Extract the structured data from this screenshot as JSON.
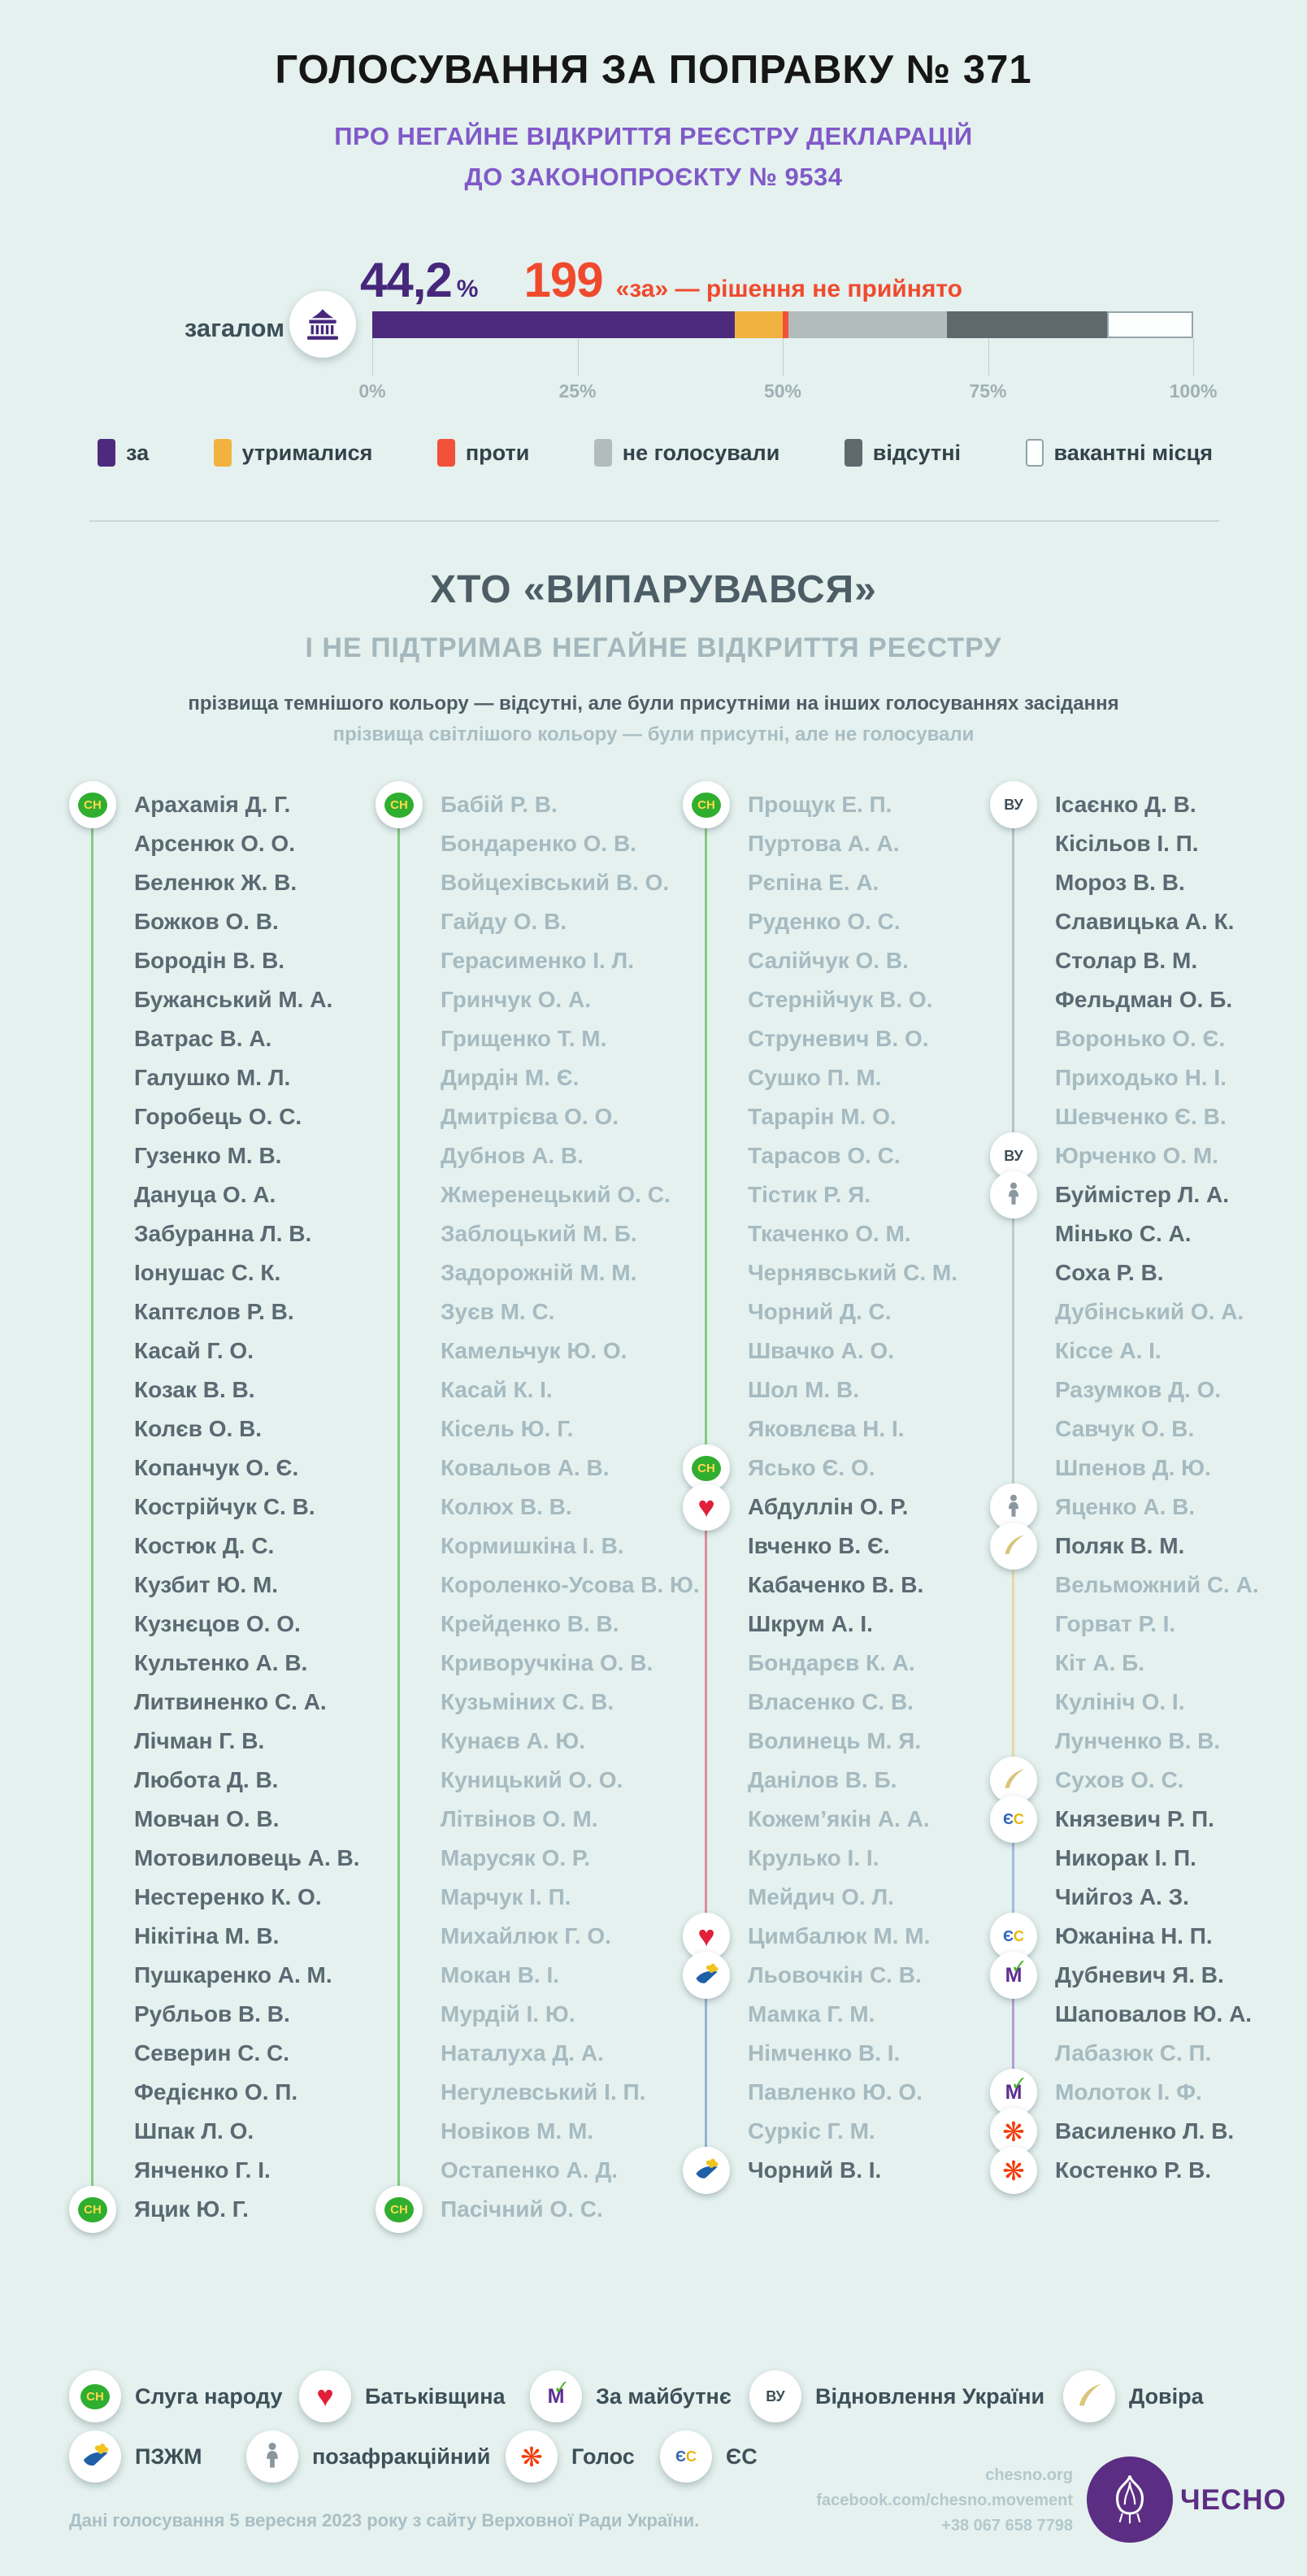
{
  "header": {
    "title": "ГОЛОСУВАННЯ ЗА ПОПРАВКУ № 371",
    "subtitle_line1": "ПРО НЕГАЙНЕ ВІДКРИТТЯ РЕЄСТРУ ДЕКЛАРАЦІЙ",
    "subtitle_line2": "ДО ЗАКОНОПРОЄКТУ № 9534"
  },
  "chart_data": {
    "type": "bar",
    "variant": "stacked-horizontal",
    "row_label": "загалом",
    "stat_percent": "44,2",
    "stat_percent_symbol": "%",
    "stat_count": "199",
    "stat_note": "«за» — рішення не прийнято",
    "segments": [
      {
        "label": "за",
        "value": 44.2,
        "color": "#4e2a7e"
      },
      {
        "label": "утрималися",
        "value": 5.8,
        "color": "#f2b240"
      },
      {
        "label": "проти",
        "value": 0.7,
        "color": "#f05138"
      },
      {
        "label": "не голосували",
        "value": 19.3,
        "color": "#b3bcbd"
      },
      {
        "label": "відсутні",
        "value": 19.5,
        "color": "#5f686c"
      },
      {
        "label": "вакантні місця",
        "value": 10.5,
        "color": "#ffffff"
      }
    ],
    "x_ticks": [
      "0%",
      "25%",
      "50%",
      "75%",
      "100%"
    ],
    "xlim": [
      0,
      100
    ],
    "grid": false,
    "legend_position": "below"
  },
  "section": {
    "title": "ХТО «ВИПАРУВАВСЯ»",
    "subtitle": "І НЕ ПІДТРИМАВ НЕГАЙНЕ ВІДКРИТТЯ РЕЄСТРУ",
    "note_dark": "прізвища темнішого кольору — відсутні, але були присутніми на інших голосуваннях засідання",
    "note_light": "прізвища світлішого кольору — були присутні, але не голосували"
  },
  "parties": {
    "sn": {
      "label": "Слуга народу",
      "abbr": "СН",
      "color": "#2fae2f",
      "line_color": "#86c986"
    },
    "bat": {
      "label": "Батьківщина",
      "color": "#e02039",
      "line_color": "#d98f9b"
    },
    "zm": {
      "label": "За майбутнє",
      "abbr": "М",
      "color": "#5e2d91",
      "line_color": "#b59fd6"
    },
    "vu": {
      "label": "Відновлення України",
      "abbr": "ВУ",
      "color": "#3d4f58",
      "line_color": "#b7c3c8"
    },
    "dov": {
      "label": "Довіра",
      "color": "#d9c57a",
      "line_color": "#e4d9ab"
    },
    "pzzm": {
      "label": "ПЗЖМ",
      "color": "#1f5fa8",
      "line_color": "#93b4d6"
    },
    "nf": {
      "label": "позафракційний",
      "color": "#8a979e",
      "line_color": "#bfc9ce"
    },
    "gol": {
      "label": "Голос",
      "color": "#f23d0c",
      "line_color": "#f3b59f"
    },
    "es": {
      "label": "ЄС",
      "abbr": "ЄС",
      "color": "#2b62b8",
      "color2": "#e8b60c",
      "line_color": "#a3bcdf"
    }
  },
  "deputies": {
    "shade_codes": {
      "d": "відсутні (темніші)",
      "l": "не голосували (світліші)"
    },
    "columns": [
      {
        "groups": [
          {
            "party": "sn",
            "members": [
              [
                "Арахамія Д. Г.",
                "d"
              ],
              [
                "Арсенюк О. О.",
                "d"
              ],
              [
                "Беленюк Ж. В.",
                "d"
              ],
              [
                "Божков О. В.",
                "d"
              ],
              [
                "Бородін В. В.",
                "d"
              ],
              [
                "Бужанський М. А.",
                "d"
              ],
              [
                "Ватрас В. А.",
                "d"
              ],
              [
                "Галушко М. Л.",
                "d"
              ],
              [
                "Горобець О. С.",
                "d"
              ],
              [
                "Гузенко М. В.",
                "d"
              ],
              [
                "Дануца О. А.",
                "d"
              ],
              [
                "Забуранна Л. В.",
                "d"
              ],
              [
                "Іонушас С. К.",
                "d"
              ],
              [
                "Каптєлов Р. В.",
                "d"
              ],
              [
                "Касай Г. О.",
                "d"
              ],
              [
                "Козак В. В.",
                "d"
              ],
              [
                "Колєв О. В.",
                "d"
              ],
              [
                "Копанчук О. Є.",
                "d"
              ],
              [
                "Кострійчук С. В.",
                "d"
              ],
              [
                "Костюк Д. С.",
                "d"
              ],
              [
                "Кузбит Ю. М.",
                "d"
              ],
              [
                "Кузнєцов О. О.",
                "d"
              ],
              [
                "Культенко А. В.",
                "d"
              ],
              [
                "Литвиненко С. А.",
                "d"
              ],
              [
                "Лічман Г. В.",
                "d"
              ],
              [
                "Любота Д. В.",
                "d"
              ],
              [
                "Мовчан О. В.",
                "d"
              ],
              [
                "Мотовиловець А. В.",
                "d"
              ],
              [
                "Нестеренко К. О.",
                "d"
              ],
              [
                "Нікітіна М. В.",
                "d"
              ],
              [
                "Пушкаренко А. М.",
                "d"
              ],
              [
                "Рубльов В. В.",
                "d"
              ],
              [
                "Северин С. С.",
                "d"
              ],
              [
                "Федієнко О. П.",
                "d"
              ],
              [
                "Шпак Л. О.",
                "d"
              ],
              [
                "Янченко Г. І.",
                "d"
              ],
              [
                "Яцик Ю. Г.",
                "d"
              ]
            ]
          }
        ]
      },
      {
        "groups": [
          {
            "party": "sn",
            "members": [
              [
                "Бабій Р. В.",
                "l"
              ],
              [
                "Бондаренко О. В.",
                "l"
              ],
              [
                "Войцехівський В. О.",
                "l"
              ],
              [
                "Гайду О. В.",
                "l"
              ],
              [
                "Герасименко І. Л.",
                "l"
              ],
              [
                "Гринчук О. А.",
                "l"
              ],
              [
                "Грищенко Т. М.",
                "l"
              ],
              [
                "Дирдін М. Є.",
                "l"
              ],
              [
                "Дмитрієва О. О.",
                "l"
              ],
              [
                "Дубнов А. В.",
                "l"
              ],
              [
                "Жмеренецький О. С.",
                "l"
              ],
              [
                "Заблоцький М. Б.",
                "l"
              ],
              [
                "Задорожній М. М.",
                "l"
              ],
              [
                "Зуєв М. С.",
                "l"
              ],
              [
                "Камельчук Ю. О.",
                "l"
              ],
              [
                "Касай К. І.",
                "l"
              ],
              [
                "Кісель Ю. Г.",
                "l"
              ],
              [
                "Ковальов А. В.",
                "l"
              ],
              [
                "Колюх В. В.",
                "l"
              ],
              [
                "Кормишкіна І. В.",
                "l"
              ],
              [
                "Короленко-Усова В. Ю.",
                "l"
              ],
              [
                "Крейденко В. В.",
                "l"
              ],
              [
                "Криворучкіна О. В.",
                "l"
              ],
              [
                "Кузьміних С. В.",
                "l"
              ],
              [
                "Кунаєв А. Ю.",
                "l"
              ],
              [
                "Куницький О. О.",
                "l"
              ],
              [
                "Літвінов О. М.",
                "l"
              ],
              [
                "Марусяк О. Р.",
                "l"
              ],
              [
                "Марчук І. П.",
                "l"
              ],
              [
                "Михайлюк Г. О.",
                "l"
              ],
              [
                "Мокан В. І.",
                "l"
              ],
              [
                "Мурдій І. Ю.",
                "l"
              ],
              [
                "Наталуха Д. А.",
                "l"
              ],
              [
                "Негулевський І. П.",
                "l"
              ],
              [
                "Новіков М. М.",
                "l"
              ],
              [
                "Остапенко А. Д.",
                "l"
              ],
              [
                "Пасічний О. С.",
                "l"
              ]
            ]
          }
        ]
      },
      {
        "groups": [
          {
            "party": "sn",
            "members": [
              [
                "Прощук Е. П.",
                "l"
              ],
              [
                "Пуртова А. А.",
                "l"
              ],
              [
                "Рєпіна Е. А.",
                "l"
              ],
              [
                "Руденко О. С.",
                "l"
              ],
              [
                "Салійчук О. В.",
                "l"
              ],
              [
                "Стернійчук В. О.",
                "l"
              ],
              [
                "Струневич В. О.",
                "l"
              ],
              [
                "Сушко П. М.",
                "l"
              ],
              [
                "Тарарін М. О.",
                "l"
              ],
              [
                "Тарасов О. С.",
                "l"
              ],
              [
                "Тістик Р. Я.",
                "l"
              ],
              [
                "Ткаченко О. М.",
                "l"
              ],
              [
                "Чернявський С. М.",
                "l"
              ],
              [
                "Чорний Д. С.",
                "l"
              ],
              [
                "Швачко А. О.",
                "l"
              ],
              [
                "Шол М. В.",
                "l"
              ],
              [
                "Яковлєва Н. І.",
                "l"
              ],
              [
                "Ясько Є. О.",
                "l"
              ]
            ]
          },
          {
            "party": "bat",
            "members": [
              [
                "Абдуллін О. Р.",
                "d"
              ],
              [
                "Івченко В. Є.",
                "d"
              ],
              [
                "Кабаченко В. В.",
                "d"
              ],
              [
                "Шкрум А. І.",
                "d"
              ],
              [
                "Бондарєв К. А.",
                "l"
              ],
              [
                "Власенко С. В.",
                "l"
              ],
              [
                "Волинець М. Я.",
                "l"
              ],
              [
                "Данілов В. Б.",
                "l"
              ],
              [
                "Кожем’якін А. А.",
                "l"
              ],
              [
                "Крулько І. І.",
                "l"
              ],
              [
                "Мейдич О. Л.",
                "l"
              ],
              [
                "Цимбалюк М. М.",
                "l"
              ]
            ]
          },
          {
            "party": "pzzm",
            "members": [
              [
                "Льовочкін С. В.",
                "l"
              ],
              [
                "Мамка Г. М.",
                "l"
              ],
              [
                "Німченко В. І.",
                "l"
              ],
              [
                "Павленко Ю. О.",
                "l"
              ],
              [
                "Суркіс Г. М.",
                "l"
              ],
              [
                "Чорний В. І.",
                "d"
              ]
            ]
          }
        ]
      },
      {
        "groups": [
          {
            "party": "vu",
            "members": [
              [
                "Ісаєнко Д. В.",
                "d"
              ],
              [
                "Кісільов І. П.",
                "d"
              ],
              [
                "Мороз В. В.",
                "d"
              ],
              [
                "Славицька А. К.",
                "d"
              ],
              [
                "Столар В. М.",
                "d"
              ],
              [
                "Фельдман О. Б.",
                "d"
              ],
              [
                "Воронько О. Є.",
                "l"
              ],
              [
                "Приходько Н. І.",
                "l"
              ],
              [
                "Шевченко Є. В.",
                "l"
              ],
              [
                "Юрченко О. М.",
                "l"
              ]
            ]
          },
          {
            "party": "nf",
            "members": [
              [
                "Буймістер Л. А.",
                "d"
              ],
              [
                "Мінько С. А.",
                "d"
              ],
              [
                "Соха Р. В.",
                "d"
              ],
              [
                "Дубінський О. А.",
                "l"
              ],
              [
                "Кіссе А. І.",
                "l"
              ],
              [
                "Разумков Д. О.",
                "l"
              ],
              [
                "Савчук О. В.",
                "l"
              ],
              [
                "Шпенов Д. Ю.",
                "l"
              ],
              [
                "Яценко А. В.",
                "l"
              ]
            ]
          },
          {
            "party": "dov",
            "members": [
              [
                "Поляк В. М.",
                "d"
              ],
              [
                "Вельможний С. А.",
                "l"
              ],
              [
                "Горват Р. І.",
                "l"
              ],
              [
                "Кіт А. Б.",
                "l"
              ],
              [
                "Кулініч О. І.",
                "l"
              ],
              [
                "Лунченко В. В.",
                "l"
              ],
              [
                "Сухов О. С.",
                "l"
              ]
            ]
          },
          {
            "party": "es",
            "members": [
              [
                "Князевич Р. П.",
                "d"
              ],
              [
                "Никорак І. П.",
                "d"
              ],
              [
                "Чийгоз А. З.",
                "d"
              ],
              [
                "Южаніна Н. П.",
                "d"
              ]
            ]
          },
          {
            "party": "zm",
            "members": [
              [
                "Дубневич Я. В.",
                "d"
              ],
              [
                "Шаповалов Ю. А.",
                "d"
              ],
              [
                "Лабазюк С. П.",
                "l"
              ],
              [
                "Молоток І. Ф.",
                "l"
              ]
            ]
          },
          {
            "party": "gol",
            "members": [
              [
                "Василенко Л. В.",
                "d"
              ],
              [
                "Костенко Р. В.",
                "d"
              ]
            ]
          }
        ]
      }
    ]
  },
  "party_legend": {
    "row1": [
      "sn",
      "bat",
      "zm",
      "vu",
      "dov"
    ],
    "row2": [
      "pzzm",
      "nf",
      "gol",
      "es"
    ]
  },
  "footer": {
    "source": "Дані голосування 5 вересня 2023 року з сайту Верховної Ради України.",
    "site": "chesno.org",
    "facebook": "facebook.com/chesno.movement",
    "phone": "+38 067 658 7798",
    "logo_text": "ЧЕСНО"
  }
}
